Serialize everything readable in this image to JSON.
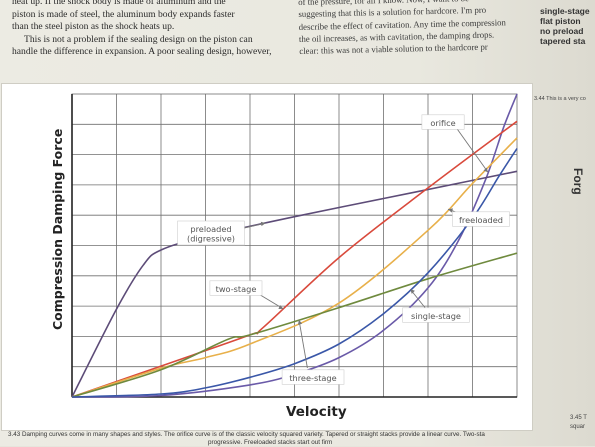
{
  "page": {
    "top_left_lines": [
      "heat up. If the shock body is made of aluminum and the",
      "piston is made of steel, the aluminum body expands faster",
      "than the steel piston as the shock heats up.",
      "This is not a problem if the sealing design on the piston can",
      "handle the difference in expansion. A poor sealing design, however,"
    ],
    "top_mid_lines": [
      "of the pressure, for all I know. Now, I want to be",
      "suggesting that this is a solution for hardcore. I'm pro",
      "describe the effect of cavitation. Any time the compression",
      "the oil increases, as with cavitation, the damping drops.",
      "clear: this was not a viable solution to the hardcore pr"
    ],
    "sidebar_labels": [
      "single-stage",
      "flat piston",
      "no preload",
      "tapered sta"
    ],
    "side_caption_a": "3.44 This is a very co",
    "side_caption_b": [
      "3.45 T",
      "squar"
    ],
    "side_fragment": "Forg",
    "caption_lines": [
      "3.43 Damping curves come in many shapes and styles. The orifice curve is of the classic velocity squared variety. Tapered or straight stacks provide a linear curve. Two-sta",
      "progressive. Freeloaded stacks start out firm"
    ]
  },
  "colors": {
    "grid": "#6f6f6f",
    "axis": "#222222",
    "callout_fill": "#ffffff",
    "callout_stroke": "#777777",
    "callout_text": "#555555"
  },
  "chart_data": {
    "type": "line",
    "title": "",
    "xlabel": "Velocity",
    "ylabel": "Compression Damping Force",
    "xlim": [
      0,
      10
    ],
    "ylim": [
      0,
      10
    ],
    "grid": true,
    "x_tick_labels": [],
    "y_tick_labels": [],
    "series": [
      {
        "name": "orifice",
        "color": "#6a5aa8",
        "x": [
          0,
          2,
          4,
          5,
          6,
          7,
          8,
          8.7,
          9.3,
          9.7,
          10
        ],
        "y": [
          0,
          0.05,
          0.4,
          0.75,
          1.3,
          2.2,
          3.6,
          5.2,
          7.2,
          8.9,
          10
        ]
      },
      {
        "name": "preloaded (digressive)",
        "color": "#5d4c78",
        "x": [
          0,
          1,
          1.6,
          2,
          3,
          5,
          7,
          9,
          10
        ],
        "y": [
          0,
          2.9,
          4.35,
          4.85,
          5.3,
          5.95,
          6.55,
          7.15,
          7.45
        ]
      },
      {
        "name": "two-stage",
        "color": "#d94a3c",
        "x": [
          0,
          2,
          4,
          4.3,
          6,
          8,
          10
        ],
        "y": [
          0,
          1.02,
          2.05,
          2.3,
          4.6,
          6.9,
          9.1
        ]
      },
      {
        "name": "freeloaded",
        "color": "#e8b04a",
        "x": [
          0,
          2,
          3,
          4,
          6,
          8,
          9,
          10
        ],
        "y": [
          0,
          0.95,
          1.3,
          1.75,
          3.1,
          5.5,
          7.05,
          8.55
        ]
      },
      {
        "name": "three-stage",
        "color": "#6f8a3e",
        "x": [
          0,
          2,
          3.5,
          4,
          6,
          8,
          10
        ],
        "y": [
          0,
          0.9,
          1.9,
          2.05,
          2.95,
          3.9,
          4.75
        ]
      },
      {
        "name": "single-stage",
        "color": "#3a57a8",
        "x": [
          0,
          2,
          3,
          4,
          5,
          6,
          7,
          8,
          9,
          9.6,
          10
        ],
        "y": [
          0,
          0.1,
          0.3,
          0.65,
          1.1,
          1.75,
          2.75,
          4.1,
          5.9,
          7.3,
          8.2
        ]
      }
    ],
    "annotations": [
      {
        "series": "orifice",
        "lines": [
          "orifice"
        ]
      },
      {
        "series": "preloaded (digressive)",
        "lines": [
          "preloaded",
          "(digressive)"
        ]
      },
      {
        "series": "freeloaded",
        "lines": [
          "freeloaded"
        ]
      },
      {
        "series": "two-stage",
        "lines": [
          "two-stage"
        ]
      },
      {
        "series": "single-stage",
        "lines": [
          "single-stage"
        ]
      },
      {
        "series": "three-stage",
        "lines": [
          "three-stage"
        ]
      }
    ]
  }
}
